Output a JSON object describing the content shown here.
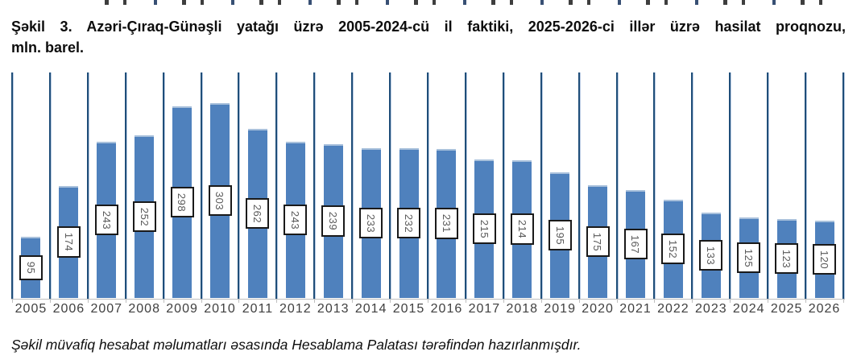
{
  "page": {
    "title_line1": "Şəkil 3. Azəri-Çıraq-Günəşli yatağı üzrə 2005-2024-cü il faktiki, 2025-2026-ci illər üzrə hasilat proqnozu,",
    "title_line2": "mln. barel.",
    "caption": "Şəkil müvafiq hesabat məlumatları əsasında Hesablama Palatası tərəfindən hazırlanmışdır."
  },
  "chart_data": {
    "type": "bar",
    "title": "Şəkil 3. Azəri-Çıraq-Günəşli yatağı üzrə 2005-2024-cü il faktiki, 2025-2026-ci illər üzrə hasilat proqnozu, mln. barel.",
    "categories": [
      "2005",
      "2006",
      "2007",
      "2008",
      "2009",
      "2010",
      "2011",
      "2012",
      "2013",
      "2014",
      "2015",
      "2016",
      "2017",
      "2018",
      "2019",
      "2020",
      "2021",
      "2022",
      "2023",
      "2024",
      "2025",
      "2026"
    ],
    "values": [
      95,
      174,
      243,
      252,
      298,
      303,
      262,
      243,
      239,
      233,
      232,
      231,
      215,
      214,
      195,
      175,
      167,
      152,
      133,
      125,
      123,
      120
    ],
    "xlabel": "",
    "ylabel": "",
    "ylim": [
      0,
      350
    ],
    "legend": "none",
    "grid": "vertical category separator lines only",
    "data_labels_style": "values in white boxes, text rotated 90° clockwise, centered inside bars",
    "colors": {
      "bar_fill": "#4f81bd",
      "bar_top_edge": "#a9c1dc",
      "separator_line": "#1f4e79",
      "axis_line": "#bfbfbf",
      "label_box_border": "#1a1a1a",
      "label_text": "#595959",
      "tick_label_text": "#3f3f3f",
      "title_text": "#0d0d0d"
    }
  }
}
